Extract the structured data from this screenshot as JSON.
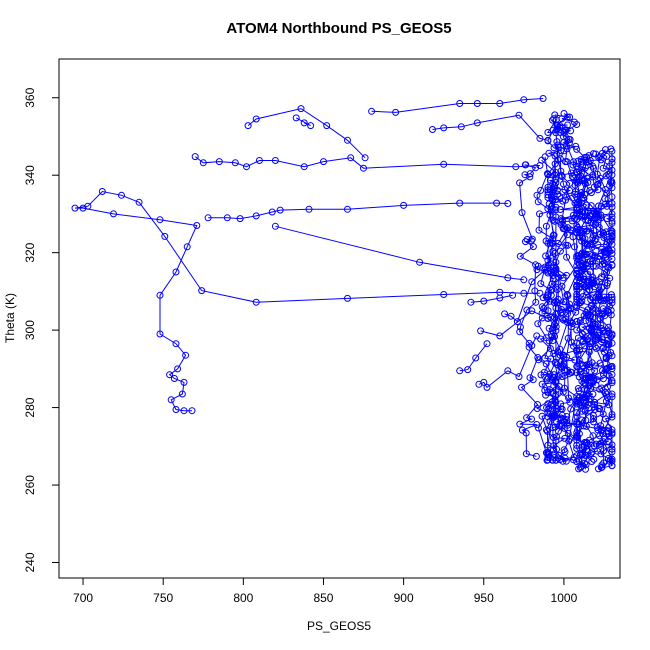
{
  "chart_data": {
    "type": "scatter",
    "title": "ATOM4 Northbound PS_GEOS5",
    "xlabel": "PS_GEOS5",
    "ylabel": "Theta (K)",
    "xlim": [
      685,
      1035
    ],
    "ylim": [
      236,
      370
    ],
    "xticks": [
      700,
      750,
      800,
      850,
      900,
      950,
      1000
    ],
    "yticks": [
      240,
      260,
      280,
      300,
      320,
      340,
      360
    ],
    "grid": false,
    "legend": "none",
    "marker": "open-circle",
    "connect_points": true,
    "colors": {
      "series": "#0000ff",
      "axis": "#000000"
    },
    "series": [
      {
        "values": [
          [
            768,
            279.2
          ],
          [
            763,
            279.2
          ],
          [
            758,
            279.5
          ],
          [
            755,
            282
          ],
          [
            762,
            283.5
          ],
          [
            763,
            286.5
          ],
          [
            757,
            287.5
          ],
          [
            754,
            288.5
          ],
          [
            759,
            290
          ],
          [
            764,
            293.5
          ],
          [
            758,
            296.5
          ],
          [
            748,
            299
          ],
          [
            748,
            309
          ],
          [
            758,
            315
          ],
          [
            765,
            321.5
          ],
          [
            771,
            327
          ],
          [
            748,
            328.5
          ],
          [
            719,
            330
          ],
          [
            700,
            331.5
          ],
          [
            695,
            331.5
          ],
          [
            703,
            332
          ],
          [
            712,
            335.8
          ],
          [
            724,
            334.8
          ],
          [
            735,
            333
          ],
          [
            751,
            324.2
          ],
          [
            774,
            310.2
          ],
          [
            808,
            307.2
          ],
          [
            865,
            308.2
          ],
          [
            925,
            309.2
          ],
          [
            960,
            309.8
          ],
          [
            975,
            309.5
          ],
          [
            985,
            309.5
          ]
        ]
      },
      {
        "values": [
          [
            820,
            326.8
          ],
          [
            910,
            317.5
          ],
          [
            965,
            313.5
          ],
          [
            975,
            313
          ]
        ]
      },
      {
        "values": [
          [
            778,
            329
          ],
          [
            790,
            329
          ],
          [
            798,
            328.8
          ],
          [
            808,
            329.5
          ],
          [
            818,
            330.5
          ],
          [
            823,
            331
          ],
          [
            841,
            331.2
          ],
          [
            865,
            331.2
          ],
          [
            900,
            332.2
          ],
          [
            935,
            332.8
          ],
          [
            958,
            332.8
          ],
          [
            965,
            332.7
          ]
        ]
      },
      {
        "values": [
          [
            770,
            344.8
          ],
          [
            775,
            343.2
          ],
          [
            785,
            343.5
          ],
          [
            795,
            343.2
          ],
          [
            802,
            342.2
          ],
          [
            810,
            343.8
          ],
          [
            820,
            343.8
          ],
          [
            838,
            342.2
          ],
          [
            850,
            343.5
          ],
          [
            867,
            344.5
          ],
          [
            875,
            341.8
          ],
          [
            925,
            342.8
          ],
          [
            970,
            342.2
          ],
          [
            985,
            342.5
          ]
        ]
      },
      {
        "values": [
          [
            803,
            352.8
          ],
          [
            808,
            354.5
          ],
          [
            836,
            357.2
          ],
          [
            852,
            352.8
          ],
          [
            865,
            349
          ],
          [
            876,
            344.5
          ]
        ]
      },
      {
        "values": [
          [
            833,
            354.8
          ],
          [
            842,
            352.8
          ],
          [
            838,
            353.5
          ]
        ]
      },
      {
        "values": [
          [
            880,
            356.5
          ],
          [
            895,
            356.2
          ],
          [
            935,
            358.5
          ],
          [
            946,
            358.5
          ],
          [
            960,
            358.5
          ],
          [
            975,
            359.5
          ],
          [
            987,
            359.8
          ]
        ]
      },
      {
        "values": [
          [
            918,
            351.8
          ],
          [
            925,
            352.2
          ],
          [
            936,
            352.5
          ],
          [
            946,
            353.5
          ],
          [
            972,
            355.5
          ],
          [
            985,
            349.5
          ],
          [
            990,
            349
          ]
        ]
      },
      {
        "values": [
          [
            948,
            299.8
          ],
          [
            960,
            298.5
          ],
          [
            980,
            305
          ],
          [
            990,
            303
          ]
        ]
      },
      {
        "values": [
          [
            935,
            289.5
          ],
          [
            940,
            289.8
          ],
          [
            945,
            292.8
          ],
          [
            952,
            296.5
          ]
        ]
      },
      {
        "values": [
          [
            947,
            286
          ],
          [
            950,
            286.5
          ],
          [
            952,
            285.2
          ],
          [
            965,
            289.5
          ],
          [
            972,
            288
          ],
          [
            980,
            296
          ],
          [
            983,
            298.5
          ]
        ]
      },
      {
        "values": [
          [
            942,
            307.2
          ],
          [
            950,
            307.5
          ],
          [
            960,
            308.3
          ],
          [
            968,
            309
          ]
        ]
      },
      {
        "values": [
          [
            963,
            304.2
          ],
          [
            967,
            303.6
          ],
          [
            971,
            302.2
          ],
          [
            980,
            312.5
          ],
          [
            988,
            315.5
          ]
        ]
      }
    ]
  }
}
